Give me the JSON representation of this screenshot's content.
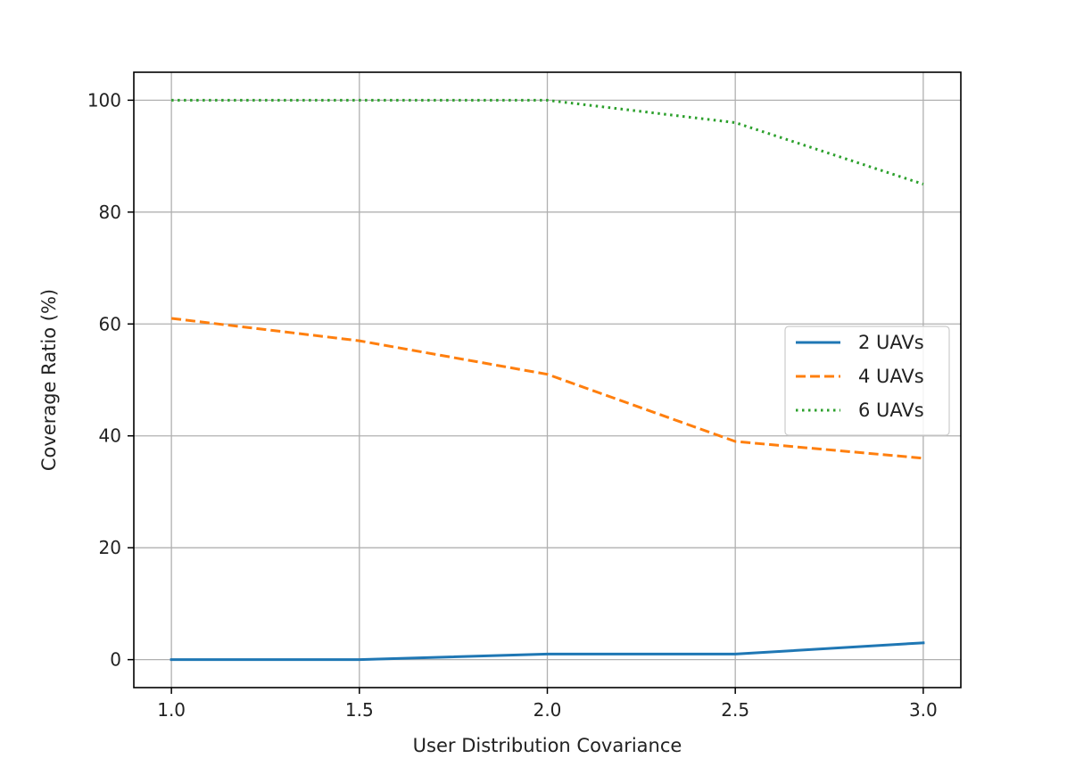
{
  "chart_data": {
    "type": "line",
    "title": "",
    "xlabel": "User Distribution Covariance",
    "ylabel": "Coverage Ratio (%)",
    "xlim": [
      0.9,
      3.1
    ],
    "ylim": [
      -5,
      105
    ],
    "x_ticks": [
      1.0,
      1.5,
      2.0,
      2.5,
      3.0
    ],
    "x_tick_labels": [
      "1.0",
      "1.5",
      "2.0",
      "2.5",
      "3.0"
    ],
    "y_ticks": [
      0,
      20,
      40,
      60,
      80,
      100
    ],
    "y_tick_labels": [
      "0",
      "20",
      "40",
      "60",
      "80",
      "100"
    ],
    "grid": true,
    "legend_position": "center-right",
    "x": [
      1.0,
      1.5,
      2.0,
      2.5,
      3.0
    ],
    "series": [
      {
        "name": "2 UAVs",
        "values": [
          0,
          0,
          1,
          1,
          3
        ],
        "color": "#1f77b4",
        "style": "solid"
      },
      {
        "name": "4 UAVs",
        "values": [
          61,
          57,
          51,
          39,
          36
        ],
        "color": "#ff7f0e",
        "style": "dashed"
      },
      {
        "name": "6 UAVs",
        "values": [
          100,
          100,
          100,
          96,
          85
        ],
        "color": "#2ca02c",
        "style": "dotted"
      }
    ]
  }
}
